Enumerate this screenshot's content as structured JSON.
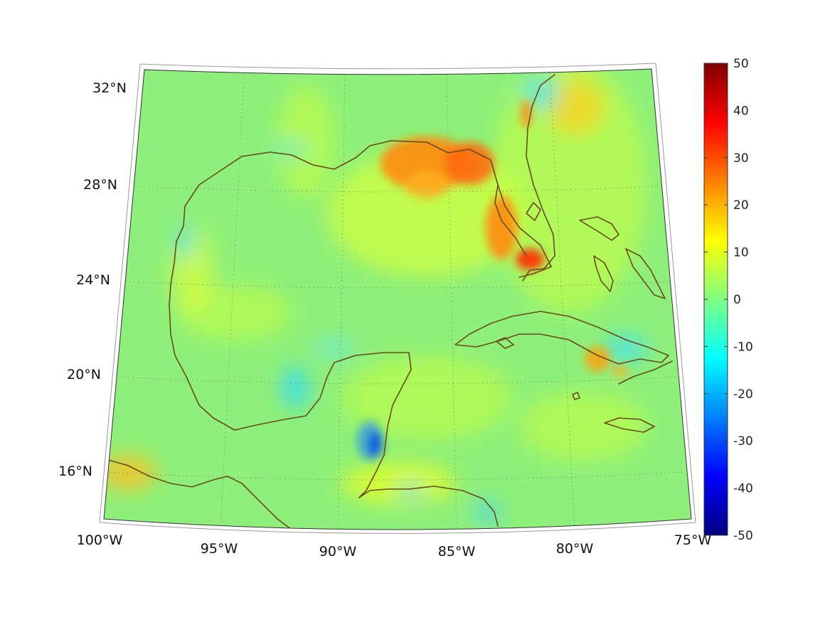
{
  "map": {
    "projection": "conic",
    "latitude_labels": [
      "32°N",
      "28°N",
      "24°N",
      "20°N",
      "16°N"
    ],
    "longitude_labels": [
      "100°W",
      "95°W",
      "90°W",
      "85°W",
      "80°W",
      "75°W"
    ],
    "colors": {
      "field_background": "#8ef07a",
      "coastline": "#6b4a1a",
      "graticule": "#7f7f7f"
    }
  },
  "colorbar": {
    "colormap": "jet",
    "range": [
      -50,
      50
    ],
    "tick_labels": [
      "50",
      "40",
      "30",
      "20",
      "10",
      "0",
      "-10",
      "-20",
      "-30",
      "-40",
      "-50"
    ]
  }
}
